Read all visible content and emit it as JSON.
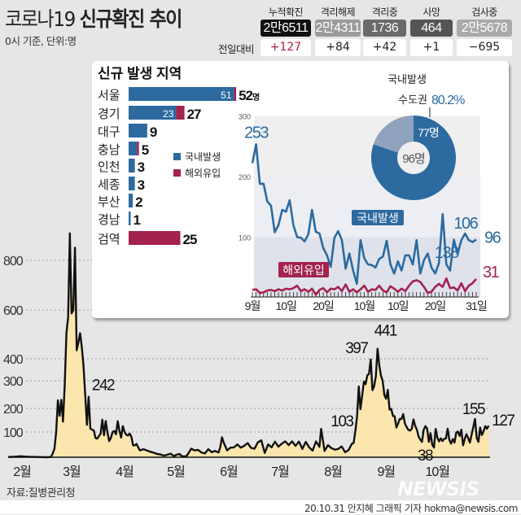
{
  "header": {
    "title_plain": "코로나19 ",
    "title_bold": "신규확진 추이",
    "subtitle": "0시 기준, 단위:명"
  },
  "stats": {
    "compare_label": "전일대비",
    "columns": [
      {
        "label": "누적확진",
        "value": "2만6511",
        "change": "+127",
        "box_color": "#111111",
        "change_color": "#b0213a"
      },
      {
        "label": "격리해제",
        "value": "2만4311",
        "change": "+84",
        "box_color": "#9b9b9b",
        "change_color": "#222222"
      },
      {
        "label": "격리중",
        "value": "1736",
        "change": "+42",
        "box_color": "#6a6a6a",
        "change_color": "#222222"
      },
      {
        "label": "사망",
        "value": "464",
        "change": "+1",
        "box_color": "#555555",
        "change_color": "#222222"
      },
      {
        "label": "검사중",
        "value": "2만5678",
        "change": "−695",
        "box_color": "#aaaaaa",
        "change_color": "#222222"
      }
    ]
  },
  "colors": {
    "domestic": "#2c6aa0",
    "overseas": "#a3224f",
    "area": "#fbe6ad",
    "line": "#111111",
    "donut_rest": "#8fa3be"
  },
  "region": {
    "title": "신규 발생 지역",
    "unit": "명",
    "legend": [
      "국내발생",
      "해외유입"
    ],
    "rows": [
      {
        "name": "서울",
        "domestic": 51,
        "overseas": 1,
        "total": 52,
        "inner_label": "51",
        "total_label": "52",
        "show_unit": true
      },
      {
        "name": "경기",
        "domestic": 23,
        "overseas": 4,
        "total": 27,
        "inner_label": "23",
        "total_label": "27"
      },
      {
        "name": "대구",
        "domestic": 9,
        "overseas": 0,
        "total": 9,
        "total_label": "9"
      },
      {
        "name": "충남",
        "domestic": 4,
        "overseas": 1,
        "total": 5,
        "total_label": "5"
      },
      {
        "name": "인천",
        "domestic": 3,
        "overseas": 0,
        "total": 3,
        "total_label": "3"
      },
      {
        "name": "세종",
        "domestic": 3,
        "overseas": 0,
        "total": 3,
        "total_label": "3"
      },
      {
        "name": "부산",
        "domestic": 2,
        "overseas": 0,
        "total": 2,
        "total_label": "2"
      },
      {
        "name": "경남",
        "domestic": 1,
        "overseas": 0,
        "total": 1,
        "total_label": "1"
      },
      {
        "name": "검역",
        "domestic": 0,
        "overseas": 25,
        "total": 25,
        "total_label": "25"
      }
    ]
  },
  "donut": {
    "title": "국내발생",
    "subtitle": "수도권",
    "share_label": "80.2%",
    "part": 77,
    "total": 96,
    "part_label": "77명",
    "total_label": "96명"
  },
  "chart_data": [
    {
      "type": "line",
      "title": "",
      "ylim": [
        0,
        300
      ],
      "yticks": [
        "300",
        "200",
        "100"
      ],
      "xtick_labels": [
        "9월",
        "10일",
        "20일",
        "10월",
        "10일",
        "20일",
        "31일"
      ],
      "x_start": "09-01",
      "x_end": "10-31",
      "series": [
        {
          "name": "국내발생",
          "values": [
            222,
            253,
            188,
            188,
            159,
            152,
            108,
            120,
            145,
            142,
            161,
            120,
            100,
            99,
            93,
            105,
            145,
            109,
            106,
            82,
            70,
            51,
            99,
            110,
            95,
            48,
            73,
            45,
            23,
            95,
            65,
            55,
            54,
            50,
            64,
            68,
            94,
            55,
            40,
            60,
            45,
            70,
            70,
            55,
            95,
            40,
            62,
            73,
            50,
            40,
            57,
            138,
            55,
            45,
            96,
            72,
            95,
            106,
            95,
            92,
            96
          ]
        },
        {
          "name": "해외유입",
          "values": [
            13,
            14,
            8,
            9,
            12,
            13,
            11,
            14,
            12,
            15,
            14,
            16,
            20,
            11,
            14,
            10,
            15,
            5,
            13,
            16,
            9,
            15,
            14,
            18,
            11,
            22,
            10,
            14,
            9,
            14,
            20,
            10,
            14,
            13,
            20,
            12,
            9,
            19,
            15,
            10,
            15,
            11,
            20,
            27,
            29,
            26,
            18,
            8,
            10,
            18,
            23,
            18,
            32,
            16,
            17,
            12,
            24,
            11,
            20,
            24,
            31
          ]
        }
      ],
      "annotations": [
        {
          "x": "09-02",
          "label": "253",
          "series": "국내발생"
        },
        {
          "x": "10-22",
          "label": "138",
          "series": "국내발생"
        },
        {
          "x": "10-28",
          "label": "106",
          "series": "국내발생"
        },
        {
          "x": "10-31",
          "label": "96",
          "series": "국내발생"
        },
        {
          "x": "10-31",
          "label": "31",
          "series": "해외유입"
        }
      ]
    },
    {
      "type": "area",
      "title": "",
      "ylim": [
        0,
        909
      ],
      "yticks": [
        "800",
        "600",
        "400",
        "300",
        "200",
        "100"
      ],
      "xtick_labels": [
        "2월",
        "3월",
        "4월",
        "5월",
        "6월",
        "7월",
        "8월",
        "9월",
        "10월"
      ],
      "grid": "dotted horizontal",
      "points": [
        [
          "01-24",
          1
        ],
        [
          "01-27",
          2
        ],
        [
          "01-31",
          4
        ],
        [
          "02-02",
          3
        ],
        [
          "02-05",
          2
        ],
        [
          "02-10",
          1
        ],
        [
          "02-15",
          0
        ],
        [
          "02-18",
          1
        ],
        [
          "02-19",
          15
        ],
        [
          "02-20",
          34
        ],
        [
          "02-21",
          100
        ],
        [
          "02-22",
          229
        ],
        [
          "02-23",
          169
        ],
        [
          "02-24",
          231
        ],
        [
          "02-25",
          144
        ],
        [
          "02-26",
          284
        ],
        [
          "02-27",
          505
        ],
        [
          "02-28",
          571
        ],
        [
          "02-29",
          909
        ],
        [
          "03-01",
          586
        ],
        [
          "03-02",
          599
        ],
        [
          "03-03",
          851
        ],
        [
          "03-04",
          435
        ],
        [
          "03-05",
          467
        ],
        [
          "03-06",
          505
        ],
        [
          "03-07",
          448
        ],
        [
          "03-08",
          367
        ],
        [
          "03-09",
          248
        ],
        [
          "03-10",
          131
        ],
        [
          "03-11",
          242
        ],
        [
          "03-12",
          114
        ],
        [
          "03-13",
          110
        ],
        [
          "03-14",
          107
        ],
        [
          "03-15",
          76
        ],
        [
          "03-16",
          74
        ],
        [
          "03-17",
          84
        ],
        [
          "03-18",
          93
        ],
        [
          "03-19",
          152
        ],
        [
          "03-20",
          87
        ],
        [
          "03-21",
          147
        ],
        [
          "03-22",
          98
        ],
        [
          "03-23",
          64
        ],
        [
          "03-24",
          76
        ],
        [
          "03-25",
          100
        ],
        [
          "03-26",
          104
        ],
        [
          "03-27",
          91
        ],
        [
          "03-28",
          146
        ],
        [
          "03-29",
          105
        ],
        [
          "03-30",
          78
        ],
        [
          "03-31",
          125
        ],
        [
          "04-01",
          101
        ],
        [
          "04-02",
          89
        ],
        [
          "04-03",
          86
        ],
        [
          "04-04",
          94
        ],
        [
          "04-05",
          81
        ],
        [
          "04-06",
          47
        ],
        [
          "04-07",
          47
        ],
        [
          "04-08",
          53
        ],
        [
          "04-09",
          39
        ],
        [
          "04-10",
          27
        ],
        [
          "04-12",
          32
        ],
        [
          "04-14",
          27
        ],
        [
          "04-16",
          22
        ],
        [
          "04-18",
          18
        ],
        [
          "04-20",
          13
        ],
        [
          "04-22",
          11
        ],
        [
          "04-24",
          6
        ],
        [
          "04-26",
          10
        ],
        [
          "04-28",
          14
        ],
        [
          "04-30",
          4
        ],
        [
          "05-01",
          9
        ],
        [
          "05-03",
          13
        ],
        [
          "05-05",
          3
        ],
        [
          "05-07",
          4
        ],
        [
          "05-08",
          12
        ],
        [
          "05-10",
          34
        ],
        [
          "05-12",
          27
        ],
        [
          "05-14",
          29
        ],
        [
          "05-16",
          19
        ],
        [
          "05-18",
          15
        ],
        [
          "05-20",
          32
        ],
        [
          "05-22",
          20
        ],
        [
          "05-24",
          25
        ],
        [
          "05-26",
          19
        ],
        [
          "05-27",
          40
        ],
        [
          "05-28",
          79
        ],
        [
          "05-29",
          58
        ],
        [
          "05-31",
          27
        ],
        [
          "06-02",
          38
        ],
        [
          "06-04",
          39
        ],
        [
          "06-06",
          51
        ],
        [
          "06-08",
          38
        ],
        [
          "06-10",
          45
        ],
        [
          "06-12",
          56
        ],
        [
          "06-14",
          37
        ],
        [
          "06-16",
          34
        ],
        [
          "06-18",
          59
        ],
        [
          "06-20",
          67
        ],
        [
          "06-22",
          17
        ],
        [
          "06-24",
          51
        ],
        [
          "06-26",
          39
        ],
        [
          "06-28",
          62
        ],
        [
          "06-30",
          42
        ],
        [
          "07-02",
          54
        ],
        [
          "07-04",
          63
        ],
        [
          "07-06",
          48
        ],
        [
          "07-08",
          63
        ],
        [
          "07-10",
          45
        ],
        [
          "07-12",
          62
        ],
        [
          "07-14",
          33
        ],
        [
          "07-16",
          61
        ],
        [
          "07-18",
          39
        ],
        [
          "07-20",
          26
        ],
        [
          "07-22",
          63
        ],
        [
          "07-24",
          41
        ],
        [
          "07-25",
          113
        ],
        [
          "07-27",
          25
        ],
        [
          "07-29",
          48
        ],
        [
          "07-31",
          36
        ],
        [
          "08-02",
          30
        ],
        [
          "08-04",
          33
        ],
        [
          "08-06",
          43
        ],
        [
          "08-08",
          20
        ],
        [
          "08-10",
          28
        ],
        [
          "08-12",
          54
        ],
        [
          "08-13",
          56
        ],
        [
          "08-14",
          103
        ],
        [
          "08-15",
          166
        ],
        [
          "08-16",
          279
        ],
        [
          "08-17",
          197
        ],
        [
          "08-18",
          246
        ],
        [
          "08-19",
          297
        ],
        [
          "08-20",
          288
        ],
        [
          "08-21",
          324
        ],
        [
          "08-22",
          332
        ],
        [
          "08-23",
          397
        ],
        [
          "08-24",
          266
        ],
        [
          "08-25",
          280
        ],
        [
          "08-26",
          320
        ],
        [
          "08-27",
          441
        ],
        [
          "08-28",
          371
        ],
        [
          "08-29",
          323
        ],
        [
          "08-30",
          299
        ],
        [
          "08-31",
          248
        ],
        [
          "09-01",
          235
        ],
        [
          "09-02",
          267
        ],
        [
          "09-03",
          195
        ],
        [
          "09-04",
          198
        ],
        [
          "09-05",
          168
        ],
        [
          "09-06",
          167
        ],
        [
          "09-07",
          119
        ],
        [
          "09-08",
          136
        ],
        [
          "09-09",
          156
        ],
        [
          "09-10",
          155
        ],
        [
          "09-11",
          176
        ],
        [
          "09-12",
          136
        ],
        [
          "09-13",
          121
        ],
        [
          "09-14",
          109
        ],
        [
          "09-15",
          106
        ],
        [
          "09-16",
          113
        ],
        [
          "09-17",
          153
        ],
        [
          "09-18",
          126
        ],
        [
          "09-19",
          110
        ],
        [
          "09-20",
          82
        ],
        [
          "09-21",
          70
        ],
        [
          "09-22",
          61
        ],
        [
          "09-23",
          110
        ],
        [
          "09-24",
          125
        ],
        [
          "09-25",
          114
        ],
        [
          "09-26",
          61
        ],
        [
          "09-27",
          95
        ],
        [
          "09-28",
          50
        ],
        [
          "09-29",
          38
        ],
        [
          "09-30",
          113
        ],
        [
          "10-01",
          77
        ],
        [
          "10-02",
          63
        ],
        [
          "10-03",
          75
        ],
        [
          "10-04",
          64
        ],
        [
          "10-05",
          73
        ],
        [
          "10-06",
          75
        ],
        [
          "10-07",
          114
        ],
        [
          "10-08",
          69
        ],
        [
          "10-09",
          54
        ],
        [
          "10-10",
          72
        ],
        [
          "10-11",
          58
        ],
        [
          "10-12",
          97
        ],
        [
          "10-13",
          102
        ],
        [
          "10-14",
          84
        ],
        [
          "10-15",
          110
        ],
        [
          "10-16",
          47
        ],
        [
          "10-17",
          73
        ],
        [
          "10-18",
          91
        ],
        [
          "10-19",
          76
        ],
        [
          "10-20",
          58
        ],
        [
          "10-21",
          89
        ],
        [
          "10-22",
          121
        ],
        [
          "10-23",
          155
        ],
        [
          "10-24",
          77
        ],
        [
          "10-25",
          61
        ],
        [
          "10-26",
          119
        ],
        [
          "10-27",
          88
        ],
        [
          "10-28",
          103
        ],
        [
          "10-29",
          125
        ],
        [
          "10-30",
          114
        ],
        [
          "10-31",
          127
        ]
      ],
      "annotations": [
        {
          "x": "03-11",
          "label": "242"
        },
        {
          "x": "08-14",
          "label": "103"
        },
        {
          "x": "08-23",
          "label": "397"
        },
        {
          "x": "08-27",
          "label": "441"
        },
        {
          "x": "09-29",
          "label": "38"
        },
        {
          "x": "10-23",
          "label": "155"
        },
        {
          "x": "10-31",
          "label": "127"
        }
      ]
    }
  ],
  "footer": {
    "source": "자료:질병관리청",
    "credit": "20.10.31 안지혜 그래픽 기자 hokma@newsis.com",
    "watermark": "NEWSIS"
  }
}
